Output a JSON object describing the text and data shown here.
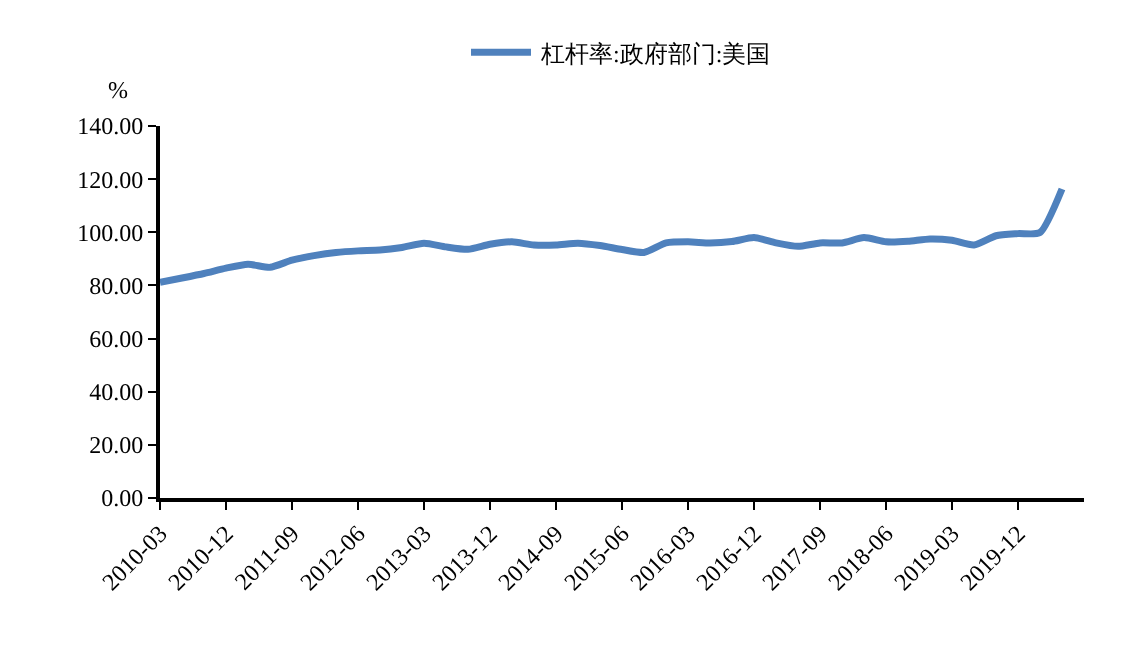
{
  "chart_data": {
    "type": "line",
    "ylabel": "%",
    "categories": [
      "2010-03",
      null,
      null,
      "2010-12",
      null,
      null,
      "2011-09",
      null,
      null,
      "2012-06",
      null,
      null,
      "2013-03",
      null,
      null,
      "2013-12",
      null,
      null,
      "2014-09",
      null,
      null,
      "2015-06",
      null,
      null,
      "2016-03",
      null,
      null,
      "2016-12",
      null,
      null,
      "2017-09",
      null,
      null,
      "2018-06",
      null,
      null,
      "2019-03",
      null,
      null,
      "2019-12",
      null,
      null
    ],
    "series": [
      {
        "name": "杠杆率:政府部门:美国",
        "color": "#4f81bd",
        "values": [
          81.2,
          82.8,
          84.5,
          86.5,
          88.0,
          86.8,
          89.5,
          91.2,
          92.4,
          93.0,
          93.3,
          94.3,
          95.9,
          94.5,
          93.6,
          95.5,
          96.4,
          95.2,
          95.2,
          95.9,
          95.0,
          93.5,
          92.4,
          96.0,
          96.4,
          96.0,
          96.5,
          98.0,
          96.0,
          94.7,
          96.0,
          96.0,
          98.0,
          96.4,
          96.6,
          97.5,
          97.0,
          95.2,
          98.7,
          99.5,
          99.9,
          116.3
        ]
      }
    ],
    "ylim": [
      0,
      140
    ],
    "yticks": [
      {
        "value": 0,
        "label": "0.00"
      },
      {
        "value": 20,
        "label": "20.00"
      },
      {
        "value": 40,
        "label": "40.00"
      },
      {
        "value": 60,
        "label": "60.00"
      },
      {
        "value": 80,
        "label": "80.00"
      },
      {
        "value": 100,
        "label": "100.00"
      },
      {
        "value": 120,
        "label": "120.00"
      },
      {
        "value": 140,
        "label": "140.00"
      }
    ],
    "grid": false,
    "legend": "top",
    "marker": "none",
    "line_style": "solid"
  }
}
